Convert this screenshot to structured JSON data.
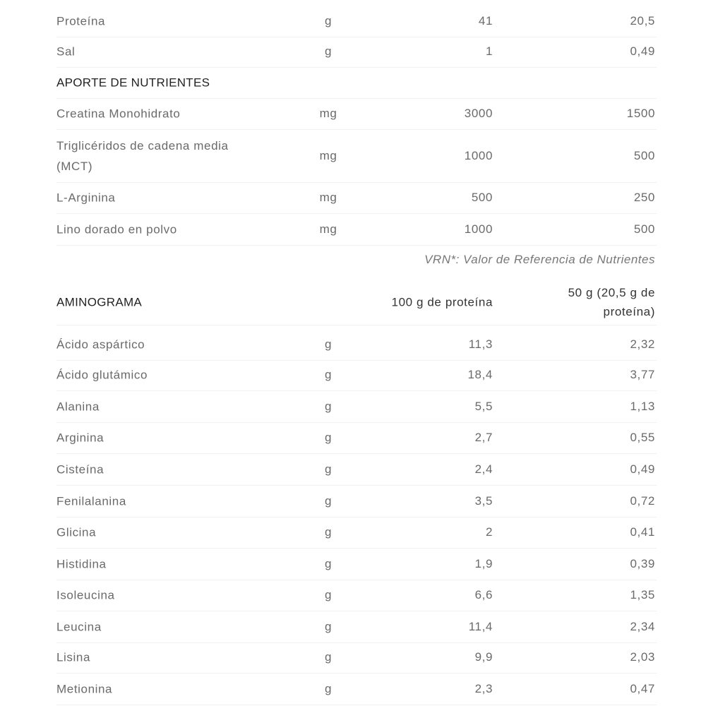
{
  "nutrition": [
    {
      "name": "Proteína",
      "unit": "g",
      "per100": "41",
      "perServing": "20,5"
    },
    {
      "name": "Sal",
      "unit": "g",
      "per100": "1",
      "perServing": "0,49"
    }
  ],
  "aporte": {
    "title": "APORTE DE NUTRIENTES",
    "rows": [
      {
        "name": "Creatina Monohidrato",
        "unit": "mg",
        "per100": "3000",
        "perServing": "1500"
      },
      {
        "name": "Triglicéridos de cadena media (MCT)",
        "unit": "mg",
        "per100": "1000",
        "perServing": "500"
      },
      {
        "name": "L-Arginina",
        "unit": "mg",
        "per100": "500",
        "perServing": "250"
      },
      {
        "name": "Lino dorado en polvo",
        "unit": "mg",
        "per100": "1000",
        "perServing": "500"
      }
    ],
    "note": "VRN*: Valor de Referencia de Nutrientes"
  },
  "aminograma": {
    "title": "AMINOGRAMA",
    "col1": "100 g de proteína",
    "col2": "50 g  (20,5 g de proteína)",
    "rows": [
      {
        "name": "Ácido aspártico",
        "unit": "g",
        "per100": "11,3",
        "perServing": "2,32"
      },
      {
        "name": "Ácido glutámico",
        "unit": "g",
        "per100": "18,4",
        "perServing": "3,77"
      },
      {
        "name": "Alanina",
        "unit": "g",
        "per100": "5,5",
        "perServing": "1,13"
      },
      {
        "name": "Arginina",
        "unit": "g",
        "per100": "2,7",
        "perServing": "0,55"
      },
      {
        "name": "Cisteína",
        "unit": "g",
        "per100": "2,4",
        "perServing": "0,49"
      },
      {
        "name": "Fenilalanina",
        "unit": "g",
        "per100": "3,5",
        "perServing": "0,72"
      },
      {
        "name": "Glicina",
        "unit": "g",
        "per100": "2",
        "perServing": "0,41"
      },
      {
        "name": "Histidina",
        "unit": "g",
        "per100": "1,9",
        "perServing": "0,39"
      },
      {
        "name": "Isoleucina",
        "unit": "g",
        "per100": "6,6",
        "perServing": "1,35"
      },
      {
        "name": "Leucina",
        "unit": "g",
        "per100": "11,4",
        "perServing": "2,34"
      },
      {
        "name": "Lisina",
        "unit": "g",
        "per100": "9,9",
        "perServing": "2,03"
      },
      {
        "name": "Metionina",
        "unit": "g",
        "per100": "2,3",
        "perServing": "0,47"
      }
    ]
  }
}
